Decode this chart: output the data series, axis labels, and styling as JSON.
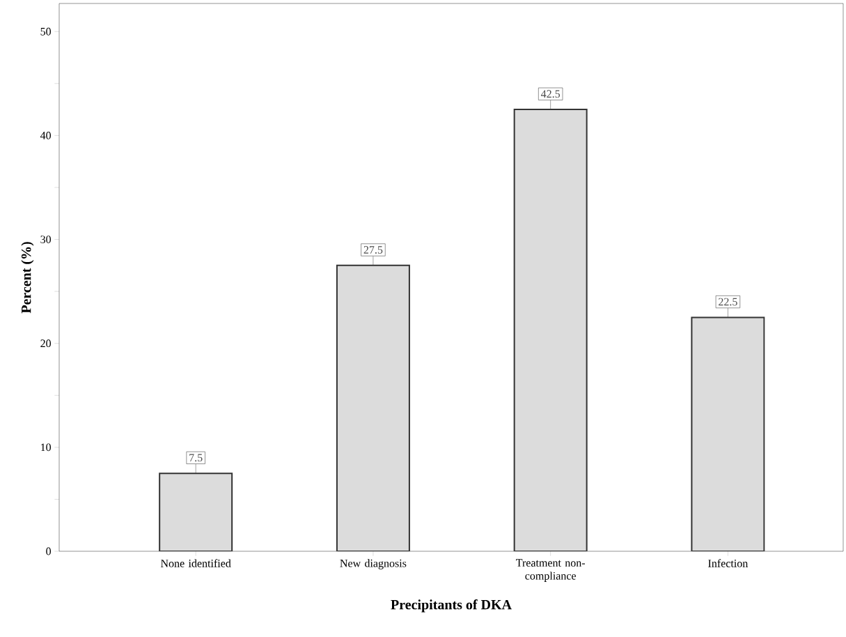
{
  "chart_data": {
    "type": "bar",
    "xlabel": "Precipitants of DKA",
    "ylabel": "Percent (%)",
    "categories": [
      "None identified",
      "New diagnosis",
      "Treatment non-compliance",
      "Infection"
    ],
    "values": [
      7.5,
      27.5,
      42.5,
      22.5
    ],
    "color": "#dcdcdc",
    "ylim": [
      0,
      52.7
    ],
    "yticks": [
      0,
      {
        "value": 5,
        "label": null
      },
      10,
      {
        "value": 15,
        "label": null
      },
      20,
      {
        "value": 25,
        "label": null
      },
      30,
      {
        "value": 35,
        "label": null
      },
      40,
      {
        "value": 45,
        "label": null
      },
      50
    ],
    "data_labels": true
  }
}
